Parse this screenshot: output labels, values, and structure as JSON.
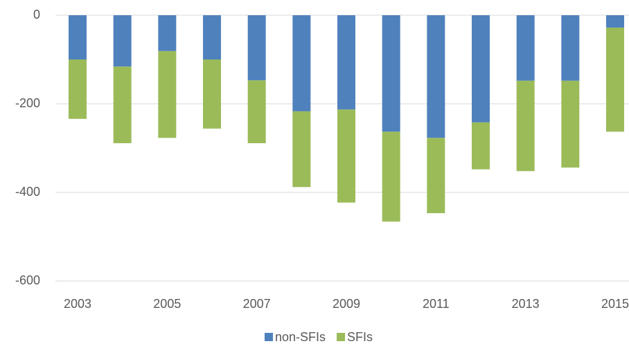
{
  "chart_data": {
    "type": "stacked_bar",
    "categories": [
      "2003",
      null,
      "2005",
      null,
      "2007",
      null,
      "2009",
      null,
      "2011",
      null,
      "2013",
      null,
      "2015"
    ],
    "series": [
      {
        "name": "non-SFIs",
        "color": "#4f81bd",
        "values": [
          -100,
          -116,
          -81,
          -100,
          -147,
          -217,
          -213,
          -263,
          -277,
          -242,
          -148,
          -148,
          -28
        ]
      },
      {
        "name": "SFIs",
        "color": "#9bbb59",
        "values": [
          -134,
          -173,
          -196,
          -156,
          -142,
          -171,
          -210,
          -203,
          -170,
          -106,
          -204,
          -196,
          -235
        ]
      }
    ],
    "ylim": [
      -600,
      0
    ],
    "yticks": [
      -600,
      -400,
      -200,
      0
    ],
    "grid": true,
    "legend": "bottom"
  }
}
